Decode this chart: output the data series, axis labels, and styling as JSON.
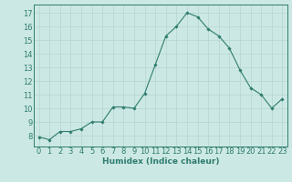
{
  "x": [
    0,
    1,
    2,
    3,
    4,
    5,
    6,
    7,
    8,
    9,
    10,
    11,
    12,
    13,
    14,
    15,
    16,
    17,
    18,
    19,
    20,
    21,
    22,
    23
  ],
  "y": [
    7.9,
    7.7,
    8.3,
    8.3,
    8.5,
    9.0,
    9.0,
    10.1,
    10.1,
    10.0,
    11.1,
    13.2,
    15.3,
    16.0,
    17.0,
    16.7,
    15.8,
    15.3,
    14.4,
    12.8,
    11.5,
    11.0,
    10.0,
    10.7
  ],
  "line_color": "#2e7d6e",
  "marker": "D",
  "marker_size": 1.8,
  "bg_color": "#cce8e4",
  "grid_color": "#b8d8d4",
  "xlabel": "Humidex (Indice chaleur)",
  "xlabel_fontsize": 6.5,
  "tick_fontsize": 6.0,
  "xlim": [
    -0.5,
    23.5
  ],
  "ylim": [
    7.2,
    17.6
  ],
  "yticks": [
    8,
    9,
    10,
    11,
    12,
    13,
    14,
    15,
    16,
    17
  ],
  "xticks": [
    0,
    1,
    2,
    3,
    4,
    5,
    6,
    7,
    8,
    9,
    10,
    11,
    12,
    13,
    14,
    15,
    16,
    17,
    18,
    19,
    20,
    21,
    22,
    23
  ]
}
